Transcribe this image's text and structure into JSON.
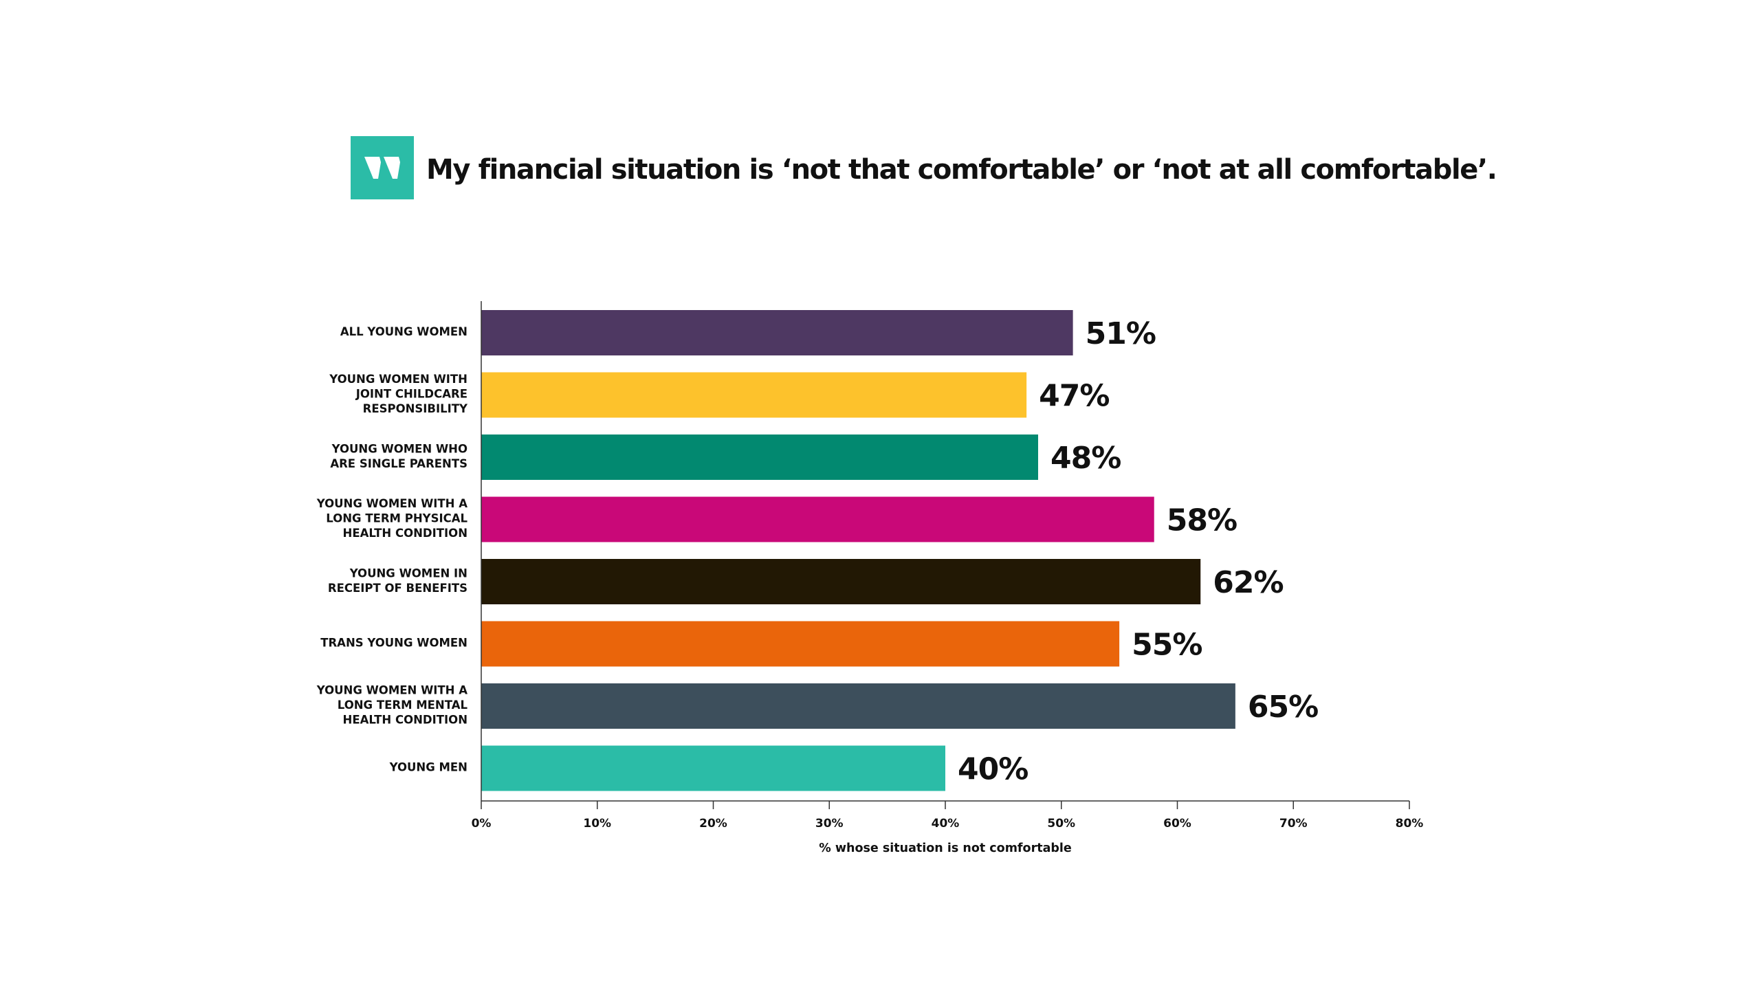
{
  "title": "My financial situation is ‘not that comfortable’ or ‘not at all comfortable’.",
  "logo": {
    "icon": "quote-mark-icon",
    "color": "#2bbca7"
  },
  "chart_data": {
    "type": "bar",
    "orientation": "horizontal",
    "categories": [
      "ALL YOUNG WOMEN",
      "YOUNG WOMEN WITH JOINT CHILDCARE RESPONSIBILITY",
      "YOUNG WOMEN WHO ARE SINGLE PARENTS",
      "YOUNG WOMEN WITH A LONG TERM PHYSICAL HEALTH CONDITION",
      "YOUNG WOMEN IN RECEIPT OF BENEFITS",
      "TRANS YOUNG WOMEN",
      "YOUNG WOMEN WITH A LONG TERM MENTAL HEALTH CONDITION",
      "YOUNG MEN"
    ],
    "category_lines": [
      [
        "ALL YOUNG WOMEN"
      ],
      [
        "YOUNG WOMEN WITH",
        "JOINT CHILDCARE",
        "RESPONSIBILITY"
      ],
      [
        "YOUNG WOMEN WHO",
        "ARE SINGLE PARENTS"
      ],
      [
        "YOUNG WOMEN WITH A",
        "LONG TERM PHYSICAL",
        "HEALTH CONDITION"
      ],
      [
        "YOUNG WOMEN IN",
        "RECEIPT OF BENEFITS"
      ],
      [
        "TRANS YOUNG WOMEN"
      ],
      [
        "YOUNG WOMEN WITH A",
        "LONG TERM MENTAL",
        "HEALTH CONDITION"
      ],
      [
        "YOUNG MEN"
      ]
    ],
    "values": [
      51,
      47,
      48,
      58,
      62,
      55,
      65,
      40
    ],
    "value_labels": [
      "51%",
      "47%",
      "48%",
      "58%",
      "62%",
      "55%",
      "65%",
      "40%"
    ],
    "colors": [
      "#4e3862",
      "#fdc22c",
      "#028970",
      "#c90878",
      "#221804",
      "#ea650b",
      "#3d4f5c",
      "#2bbca7"
    ],
    "xlim": [
      0,
      80
    ],
    "xticks": [
      0,
      10,
      20,
      30,
      40,
      50,
      60,
      70,
      80
    ],
    "xtick_labels": [
      "0%",
      "10%",
      "20%",
      "30%",
      "40%",
      "50%",
      "60%",
      "70%",
      "80%"
    ],
    "xlabel": "% whose situation is not comfortable",
    "ylabel": "",
    "grid": false,
    "legend": "none"
  }
}
